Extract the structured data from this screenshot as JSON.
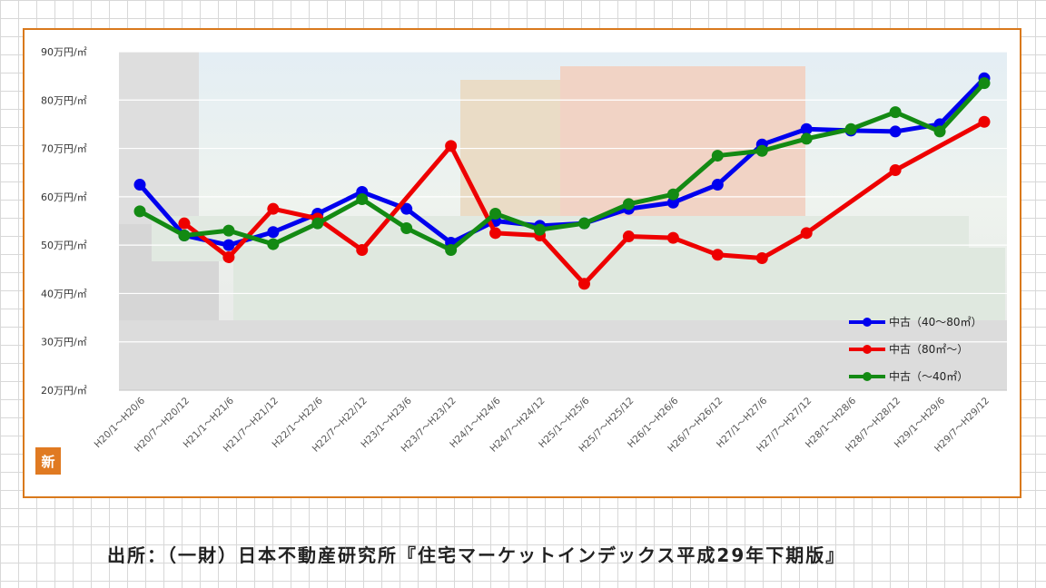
{
  "badge": {
    "label": "新"
  },
  "source": {
    "text": "出所：（一財）日本不動産研究所『住宅マーケットインデックス平成29年下期版』"
  },
  "colors": {
    "frame": "#d9791c",
    "badge": "#e07a22"
  },
  "chart_data": {
    "type": "line",
    "title": "",
    "xlabel": "",
    "ylabel": "",
    "ylim": [
      20,
      90
    ],
    "yticks": [
      20,
      30,
      40,
      50,
      60,
      70,
      80,
      90
    ],
    "ytick_labels": [
      "20万円/㎡",
      "30万円/㎡",
      "40万円/㎡",
      "50万円/㎡",
      "60万円/㎡",
      "70万円/㎡",
      "80万円/㎡",
      "90万円/㎡"
    ],
    "grid": true,
    "legend_position": "bottom-right",
    "categories": [
      "H20/1～H20/6",
      "H20/7～H20/12",
      "H21/1～H21/6",
      "H21/7～H21/12",
      "H22/1～H22/6",
      "H22/7～H22/12",
      "H23/1～H23/6",
      "H23/7～H23/12",
      "H24/1～H24/6",
      "H24/7～H24/12",
      "H25/1～H25/6",
      "H25/7～H25/12",
      "H26/1～H26/6",
      "H26/7～H26/12",
      "H27/1～H27/6",
      "H27/7～H27/12",
      "H28/1～H28/6",
      "H28/7～H28/12",
      "H29/1～H29/6",
      "H29/7～H29/12"
    ],
    "series": [
      {
        "name": "中古（40～80㎡）",
        "color": "#0000ee",
        "values": [
          62.5,
          52,
          50,
          52.7,
          56.5,
          61,
          57.5,
          50.5,
          55,
          54,
          54.5,
          57.5,
          58.8,
          62.5,
          70.8,
          74,
          73.7,
          73.5,
          75,
          84.5
        ]
      },
      {
        "name": "中古（80㎡～）",
        "color": "#ee0000",
        "values": [
          null,
          54.5,
          47.5,
          57.5,
          55.5,
          49,
          null,
          70.5,
          52.5,
          52,
          42,
          51.8,
          51.5,
          48,
          47.3,
          52.5,
          null,
          65.5,
          null,
          75.5
        ]
      },
      {
        "name": "中古（～40㎡）",
        "color": "#138a13",
        "values": [
          57,
          52,
          53,
          50.2,
          54.5,
          59.5,
          53.5,
          49,
          56.5,
          53.2,
          54.5,
          58.5,
          60.5,
          68.5,
          69.5,
          72,
          74,
          77.5,
          73.5,
          83.5
        ]
      }
    ]
  }
}
